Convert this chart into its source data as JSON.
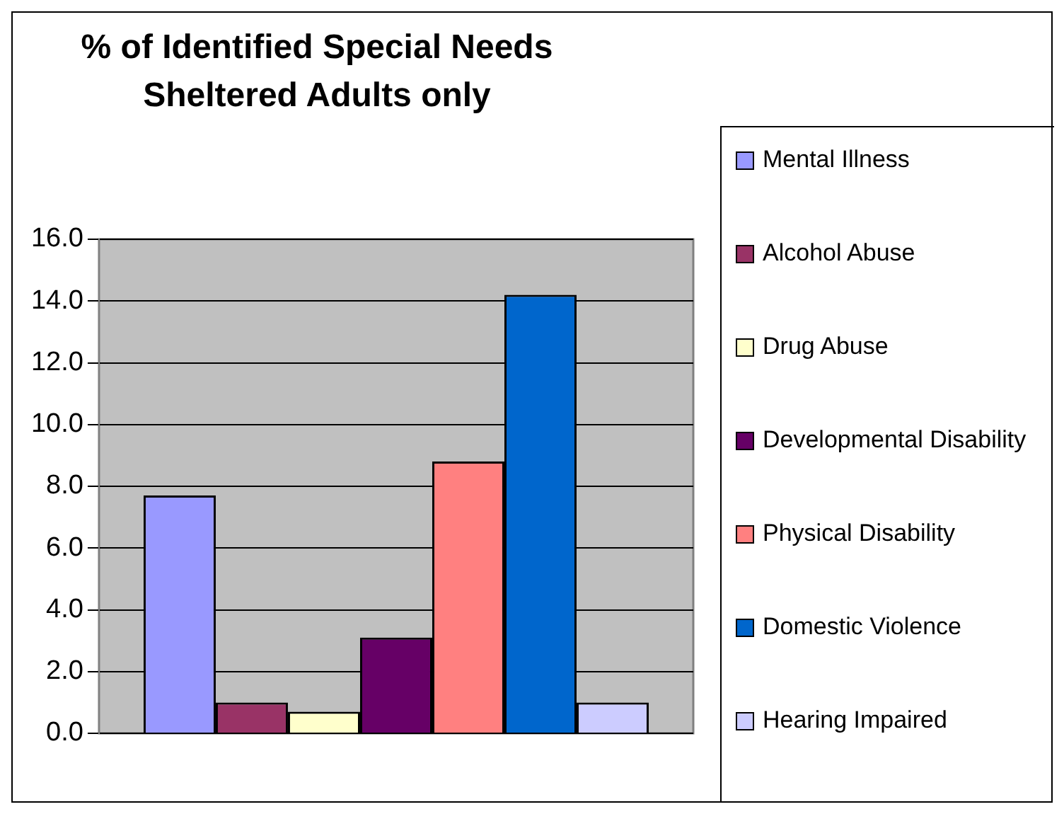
{
  "chart_data": {
    "type": "bar",
    "title": "% of Identified Special Needs Sheltered Adults only",
    "categories": [
      null
    ],
    "series": [
      {
        "name": "Mental Illness",
        "color": "#9999ff",
        "values": [
          7.7
        ]
      },
      {
        "name": "Alcohol Abuse",
        "color": "#993366",
        "values": [
          1.0
        ]
      },
      {
        "name": "Drug Abuse",
        "color": "#ffffcc",
        "values": [
          0.7
        ]
      },
      {
        "name": "Developmental Disability",
        "color": "#660066",
        "values": [
          3.1
        ]
      },
      {
        "name": "Physical Disability",
        "color": "#ff8080",
        "values": [
          8.8
        ]
      },
      {
        "name": "Domestic Violence",
        "color": "#0066cc",
        "values": [
          14.2
        ]
      },
      {
        "name": "Hearing Impaired",
        "color": "#ccccff",
        "values": [
          1.0
        ]
      }
    ],
    "ylim": [
      0,
      16
    ],
    "yticks": [
      {
        "value": 0,
        "label": "0.0"
      },
      {
        "value": 2,
        "label": "2.0"
      },
      {
        "value": 4,
        "label": "4.0"
      },
      {
        "value": 6,
        "label": "6.0"
      },
      {
        "value": 8,
        "label": "8.0"
      },
      {
        "value": 10,
        "label": "10.0"
      },
      {
        "value": 12,
        "label": "12.0"
      },
      {
        "value": 14,
        "label": "14.0"
      },
      {
        "value": 16,
        "label": "16.0"
      }
    ],
    "grid": "y",
    "legend": "right"
  }
}
